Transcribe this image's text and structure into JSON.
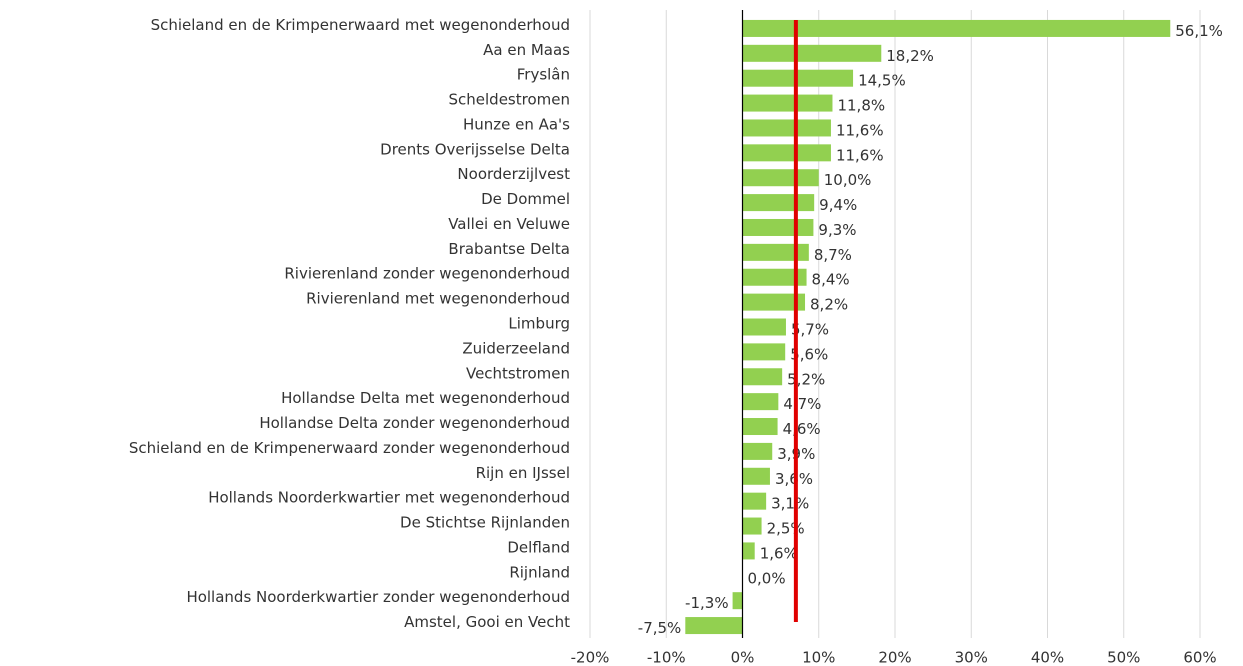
{
  "chart_data": {
    "type": "hbar",
    "categories": [
      "Schieland en de Krimpenerwaard met wegenonderhoud",
      "Aa en Maas",
      "Fryslân",
      "Scheldestromen",
      "Hunze en Aa's",
      "Drents Overijsselse Delta",
      "Noorderzijlvest",
      "De Dommel",
      "Vallei en Veluwe",
      "Brabantse Delta",
      "Rivierenland zonder wegenonderhoud",
      "Rivierenland met wegenonderhoud",
      "Limburg",
      "Zuiderzeeland",
      "Vechtstromen",
      "Hollandse Delta met wegenonderhoud",
      "Hollandse Delta zonder wegenonderhoud",
      "Schieland en de Krimpenerwaard zonder wegenonderhoud",
      "Rijn en IJssel",
      "Hollands Noorderkwartier met wegenonderhoud",
      "De Stichtse Rijnlanden",
      "Delfland",
      "Rijnland",
      "Hollands Noorderkwartier zonder wegenonderhoud",
      "Amstel, Gooi en Vecht"
    ],
    "values": [
      56.1,
      18.2,
      14.5,
      11.8,
      11.6,
      11.6,
      10.0,
      9.4,
      9.3,
      8.7,
      8.4,
      8.2,
      5.7,
      5.6,
      5.2,
      4.7,
      4.6,
      3.9,
      3.6,
      3.1,
      2.5,
      1.6,
      0.0,
      -1.3,
      -7.5
    ],
    "value_labels": [
      "56,1%",
      "18,2%",
      "14,5%",
      "11,8%",
      "11,6%",
      "11,6%",
      "10,0%",
      "9,4%",
      "9,3%",
      "8,7%",
      "8,4%",
      "8,2%",
      "5,7%",
      "5,6%",
      "5,2%",
      "4,7%",
      "4,6%",
      "3,9%",
      "3,6%",
      "3,1%",
      "2,5%",
      "1,6%",
      "0,0%",
      "-1,3%",
      "-7,5%"
    ],
    "color": "#92d050",
    "xlim": [
      -20,
      60
    ],
    "xticks": [
      {
        "value": -20,
        "label": "-20%"
      },
      {
        "value": -10,
        "label": "-10%"
      },
      {
        "value": 0,
        "label": "0%"
      },
      {
        "value": 10,
        "label": "10%"
      },
      {
        "value": 20,
        "label": "20%"
      },
      {
        "value": 30,
        "label": "30%"
      },
      {
        "value": 40,
        "label": "40%"
      },
      {
        "value": 50,
        "label": "50%"
      },
      {
        "value": 60,
        "label": "60%"
      }
    ],
    "grid": true,
    "reference_line": {
      "value": 7,
      "color": "#e00000"
    }
  }
}
